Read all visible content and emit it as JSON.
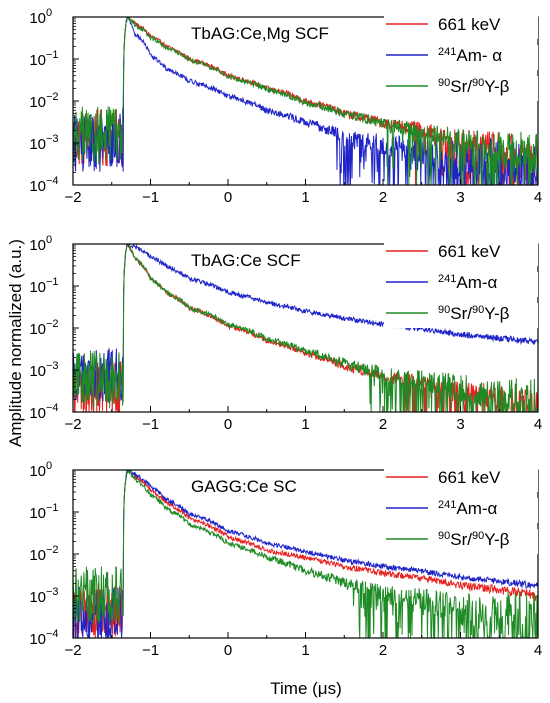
{
  "figure": {
    "ylabel": "Amplitude normalized (a.u.)",
    "xlabel": "Time (μs)"
  },
  "colors": {
    "red": "#e8201f",
    "blue": "#1f24c8",
    "green": "#1e8a24"
  },
  "chart_data": [
    {
      "type": "line",
      "title": "TbAG:Ce,Mg SCF",
      "xlim": [
        -2,
        4
      ],
      "ylim": [
        0.0001,
        1
      ],
      "yscale": "log",
      "x_ticks": [
        "−2",
        "−1",
        "0",
        "1",
        "2",
        "3",
        "4"
      ],
      "legend_position": "top-right",
      "series": [
        {
          "name": "661 keV",
          "legend": {
            "pre": "",
            "sup1": "",
            "mid": "661 keV",
            "sup2": "",
            "post": ""
          },
          "color": "#e8201f",
          "x": [
            -1.35,
            -1.3,
            -1.2,
            -1.0,
            -0.8,
            -0.5,
            0.0,
            0.5,
            1.0,
            1.5,
            2.0,
            3.0,
            4.0
          ],
          "y": [
            0.0,
            1.0,
            0.7,
            0.35,
            0.2,
            0.1,
            0.04,
            0.02,
            0.01,
            0.005,
            0.003,
            0.0012,
            0.0006
          ],
          "noise_floor": 0.0015
        },
        {
          "name": "241Am- α",
          "legend": {
            "pre": "",
            "sup1": "241",
            "mid": "Am- α",
            "sup2": "",
            "post": ""
          },
          "color": "#1f24c8",
          "x": [
            -1.35,
            -1.3,
            -1.2,
            -1.0,
            -0.8,
            -0.5,
            0.0,
            0.5,
            1.0,
            1.5,
            2.0,
            3.0,
            4.0
          ],
          "y": [
            0.0,
            1.0,
            0.4,
            0.12,
            0.06,
            0.03,
            0.013,
            0.006,
            0.003,
            0.0015,
            0.0009,
            0.0004,
            0.0002
          ],
          "noise_floor": 0.0012
        },
        {
          "name": "90Sr/90Y-β",
          "legend": {
            "pre": "",
            "sup1": "90",
            "mid": "Sr/",
            "sup2": "90",
            "post": "Y-β"
          },
          "color": "#1e8a24",
          "x": [
            -1.35,
            -1.3,
            -1.2,
            -1.0,
            -0.8,
            -0.5,
            0.0,
            0.5,
            1.0,
            1.5,
            2.0,
            3.0,
            4.0
          ],
          "y": [
            0.0,
            1.0,
            0.65,
            0.33,
            0.19,
            0.095,
            0.038,
            0.019,
            0.009,
            0.005,
            0.0028,
            0.0011,
            0.0005
          ],
          "noise_floor": 0.0018
        }
      ]
    },
    {
      "type": "line",
      "title": "TbAG:Ce SCF",
      "xlim": [
        -2,
        4
      ],
      "ylim": [
        0.0001,
        1
      ],
      "yscale": "log",
      "x_ticks": [
        "−2",
        "−1",
        "0",
        "1",
        "2",
        "3",
        "4"
      ],
      "legend_position": "top-right",
      "series": [
        {
          "name": "661 keV",
          "legend": {
            "pre": "",
            "sup1": "",
            "mid": "661 keV",
            "sup2": "",
            "post": ""
          },
          "color": "#e8201f",
          "x": [
            -1.35,
            -1.3,
            -1.2,
            -1.0,
            -0.8,
            -0.5,
            0.0,
            0.5,
            1.0,
            1.5,
            2.0,
            3.0,
            4.0
          ],
          "y": [
            0.0,
            1.0,
            0.45,
            0.15,
            0.07,
            0.03,
            0.011,
            0.005,
            0.0025,
            0.0012,
            0.0007,
            0.0003,
            0.00015
          ],
          "noise_floor": 0.0004
        },
        {
          "name": "241Am-α",
          "legend": {
            "pre": "",
            "sup1": "241",
            "mid": "Am-α",
            "sup2": "",
            "post": ""
          },
          "color": "#1f24c8",
          "x": [
            -1.35,
            -1.3,
            -1.2,
            -1.0,
            -0.8,
            -0.5,
            0.0,
            0.5,
            1.0,
            1.5,
            2.0,
            3.0,
            4.0
          ],
          "y": [
            0.0,
            1.0,
            0.85,
            0.5,
            0.3,
            0.15,
            0.07,
            0.04,
            0.025,
            0.017,
            0.012,
            0.007,
            0.0045
          ],
          "noise_floor": 0.0008
        },
        {
          "name": "90Sr/90Y-β",
          "legend": {
            "pre": "",
            "sup1": "90",
            "mid": "Sr/",
            "sup2": "90",
            "post": "Y-β"
          },
          "color": "#1e8a24",
          "x": [
            -1.35,
            -1.3,
            -1.2,
            -1.0,
            -0.8,
            -0.5,
            0.0,
            0.5,
            1.0,
            1.5,
            2.0,
            3.0,
            4.0
          ],
          "y": [
            0.0,
            1.0,
            0.45,
            0.15,
            0.07,
            0.03,
            0.012,
            0.0055,
            0.0028,
            0.0014,
            0.0008,
            0.00035,
            0.00018
          ],
          "noise_floor": 0.0007
        }
      ]
    },
    {
      "type": "line",
      "title": "GAGG:Ce SC",
      "xlim": [
        -2,
        4
      ],
      "ylim": [
        0.0001,
        1
      ],
      "yscale": "log",
      "x_ticks": [
        "−2",
        "−1",
        "0",
        "1",
        "2",
        "3",
        "4"
      ],
      "legend_position": "top-right",
      "series": [
        {
          "name": "661 keV",
          "legend": {
            "pre": "",
            "sup1": "",
            "mid": "661 keV",
            "sup2": "",
            "post": ""
          },
          "color": "#e8201f",
          "x": [
            -1.35,
            -1.3,
            -1.2,
            -1.0,
            -0.8,
            -0.5,
            0.0,
            0.5,
            1.0,
            1.5,
            2.0,
            3.0,
            4.0
          ],
          "y": [
            0.0,
            1.0,
            0.7,
            0.33,
            0.17,
            0.07,
            0.025,
            0.012,
            0.008,
            0.005,
            0.0035,
            0.0018,
            0.001
          ],
          "noise_floor": 0.0005
        },
        {
          "name": "241Am-α",
          "legend": {
            "pre": "",
            "sup1": "241",
            "mid": "Am-α",
            "sup2": "",
            "post": ""
          },
          "color": "#1f24c8",
          "x": [
            -1.35,
            -1.3,
            -1.2,
            -1.0,
            -0.8,
            -0.5,
            0.0,
            0.5,
            1.0,
            1.5,
            2.0,
            3.0,
            4.0
          ],
          "y": [
            0.0,
            1.0,
            0.8,
            0.4,
            0.2,
            0.09,
            0.035,
            0.018,
            0.011,
            0.007,
            0.005,
            0.0028,
            0.0017
          ],
          "noise_floor": 0.0004
        },
        {
          "name": "90Sr/90Y-β",
          "legend": {
            "pre": "",
            "sup1": "90",
            "mid": "Sr/",
            "sup2": "90",
            "post": "Y-β"
          },
          "color": "#1e8a24",
          "x": [
            -1.35,
            -1.3,
            -1.2,
            -1.0,
            -0.8,
            -0.5,
            0.0,
            0.5,
            1.0,
            1.5,
            2.0,
            3.0,
            4.0
          ],
          "y": [
            0.0,
            1.0,
            0.6,
            0.25,
            0.12,
            0.05,
            0.018,
            0.008,
            0.004,
            0.002,
            0.0011,
            0.0005,
            0.00025
          ],
          "noise_floor": 0.0012
        }
      ]
    }
  ]
}
